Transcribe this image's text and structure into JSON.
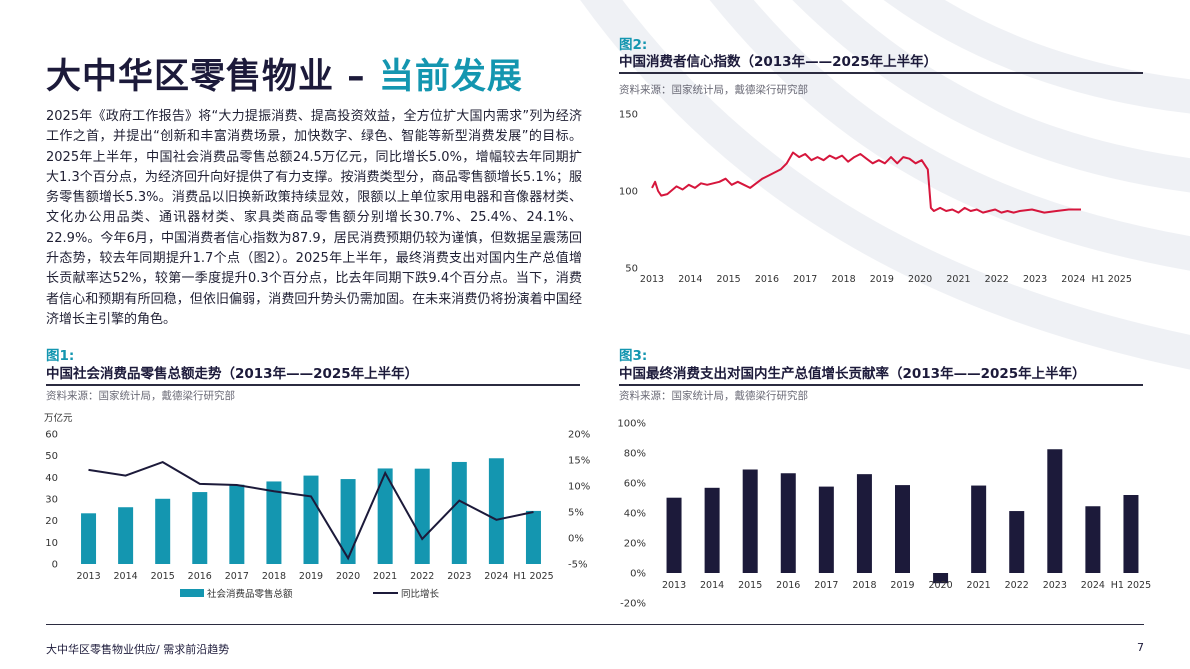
{
  "page": {
    "title_main": "大中华区零售物业 – ",
    "title_accent": "当前发展",
    "body": "2025年《政府工作报告》将“大力提振消费、提高投资效益，全方位扩大国内需求”列为经济工作之首，并提出“创新和丰富消费场景，加快数字、绿色、智能等新型消费发展”的目标。2025年上半年，中国社会消费品零售总额24.5万亿元，同比增长5.0%，增幅较去年同期扩大1.3个百分点，为经济回升向好提供了有力支撑。按消费类型分，商品零售额增长5.1%；服务零售额增长5.3%。消费品以旧换新政策持续显效，限额以上单位家用电器和音像器材类、文化办公用品类、通讯器材类、家具类商品零售额分别增长30.7%、25.4%、24.1%、22.9%。今年6月，中国消费者信心指数为87.9，居民消费预期仍较为谨慎，但数据呈震荡回升态势，较去年同期提升1.7个点（图2）。2025年上半年，最终消费支出对国内生产总值增长贡献率达52%，较第一季度提升0.3个百分点，比去年同期下跌9.4个百分点。当下，消费者信心和预期有所回稳，但依旧偏弱，消费回升势头仍需加固。在未来消费仍将扮演着中国经济增长主引擎的角色。",
    "footer": "大中华区零售物业供应/ 需求前沿趋势",
    "page_number": "7"
  },
  "colors": {
    "teal": "#1496b0",
    "navy": "#1c1a3a",
    "red": "#d6163c",
    "grid": "#2b2b40"
  },
  "chart_data": [
    {
      "id": "fig1",
      "type": "bar",
      "label": "图1:",
      "title": "中国社会消费品零售总额走势（2013年——2025年上半年）",
      "source": "资料来源：国家统计局，戴德梁行研究部",
      "ylabel": "万亿元",
      "ylim": [
        0,
        60
      ],
      "yticks": [
        "0",
        "10",
        "20",
        "30",
        "40",
        "50",
        "60"
      ],
      "y2lim": [
        -5,
        20
      ],
      "y2ticks": [
        "-5%",
        "0%",
        "5%",
        "10%",
        "15%",
        "20%"
      ],
      "categories": [
        "2013",
        "2014",
        "2015",
        "2016",
        "2017",
        "2018",
        "2019",
        "2020",
        "2021",
        "2022",
        "2023",
        "2024",
        "H1 2025"
      ],
      "series": [
        {
          "name": "社会消费品零售总额",
          "type": "bar",
          "axis": "left",
          "values": [
            23.4,
            26.2,
            30.1,
            33.2,
            36.6,
            38.1,
            40.8,
            39.2,
            44.1,
            44.0,
            47.1,
            48.8,
            24.5
          ]
        },
        {
          "name": "同比增长",
          "type": "line",
          "axis": "right",
          "values": [
            13.1,
            12.0,
            14.6,
            10.4,
            10.2,
            9.0,
            8.0,
            -3.9,
            12.5,
            -0.2,
            7.2,
            3.5,
            5.0
          ]
        }
      ],
      "legend": "bottom"
    },
    {
      "id": "fig2",
      "type": "line",
      "label": "图2:",
      "title": "中国消费者信心指数（2013年——2025年上半年）",
      "source": "资料来源：国家统计局，戴德梁行研究部",
      "ylim": [
        50,
        150
      ],
      "yticks": [
        "50",
        "100",
        "150"
      ],
      "categories": [
        "2013",
        "2014",
        "2015",
        "2016",
        "2017",
        "2018",
        "2019",
        "2020",
        "2021",
        "2022",
        "2023",
        "2024",
        "H1 2025"
      ],
      "x_points": 150,
      "anchors": [
        [
          0,
          102
        ],
        [
          1,
          106
        ],
        [
          2,
          100
        ],
        [
          3,
          97
        ],
        [
          5,
          98
        ],
        [
          8,
          103
        ],
        [
          10,
          101
        ],
        [
          12,
          104
        ],
        [
          14,
          102
        ],
        [
          16,
          105
        ],
        [
          18,
          104
        ],
        [
          20,
          105
        ],
        [
          22,
          106
        ],
        [
          24,
          108
        ],
        [
          26,
          104
        ],
        [
          28,
          106
        ],
        [
          30,
          104
        ],
        [
          32,
          102
        ],
        [
          34,
          105
        ],
        [
          36,
          108
        ],
        [
          38,
          110
        ],
        [
          40,
          112
        ],
        [
          42,
          114
        ],
        [
          44,
          118
        ],
        [
          46,
          125
        ],
        [
          48,
          122
        ],
        [
          50,
          124
        ],
        [
          52,
          120
        ],
        [
          54,
          122
        ],
        [
          56,
          120
        ],
        [
          58,
          123
        ],
        [
          60,
          121
        ],
        [
          62,
          123
        ],
        [
          64,
          119
        ],
        [
          66,
          122
        ],
        [
          68,
          124
        ],
        [
          70,
          121
        ],
        [
          72,
          118
        ],
        [
          74,
          120
        ],
        [
          76,
          118
        ],
        [
          78,
          122
        ],
        [
          80,
          118
        ],
        [
          82,
          122
        ],
        [
          84,
          121
        ],
        [
          86,
          118
        ],
        [
          88,
          120
        ],
        [
          90,
          114
        ],
        [
          91,
          89
        ],
        [
          92,
          87
        ],
        [
          94,
          89
        ],
        [
          96,
          87
        ],
        [
          98,
          88
        ],
        [
          100,
          86
        ],
        [
          102,
          89
        ],
        [
          104,
          87
        ],
        [
          106,
          88
        ],
        [
          108,
          86
        ],
        [
          110,
          87
        ],
        [
          112,
          88
        ],
        [
          114,
          86
        ],
        [
          116,
          87
        ],
        [
          118,
          86
        ],
        [
          120,
          87
        ],
        [
          124,
          88
        ],
        [
          128,
          86
        ],
        [
          132,
          87
        ],
        [
          136,
          88
        ],
        [
          140,
          88
        ]
      ],
      "series": [
        {
          "name": "",
          "color": "#d6163c"
        }
      ]
    },
    {
      "id": "fig3",
      "type": "bar",
      "label": "图3:",
      "title": "中国最终消费支出对国内生产总值增长贡献率（2013年——2025年上半年）",
      "source": "资料来源：国家统计局，戴德梁行研究部",
      "ylim": [
        -20,
        100
      ],
      "yticks": [
        "-20%",
        "0%",
        "20%",
        "40%",
        "60%",
        "80%",
        "100%"
      ],
      "categories": [
        "2013",
        "2014",
        "2015",
        "2016",
        "2017",
        "2018",
        "2019",
        "2020",
        "2021",
        "2022",
        "2023",
        "2024",
        "H1 2025"
      ],
      "series": [
        {
          "name": "",
          "values": [
            50.2,
            56.8,
            69.0,
            66.5,
            57.6,
            65.9,
            58.6,
            -6.8,
            58.3,
            41.3,
            82.5,
            44.5,
            52.0
          ]
        }
      ]
    }
  ]
}
